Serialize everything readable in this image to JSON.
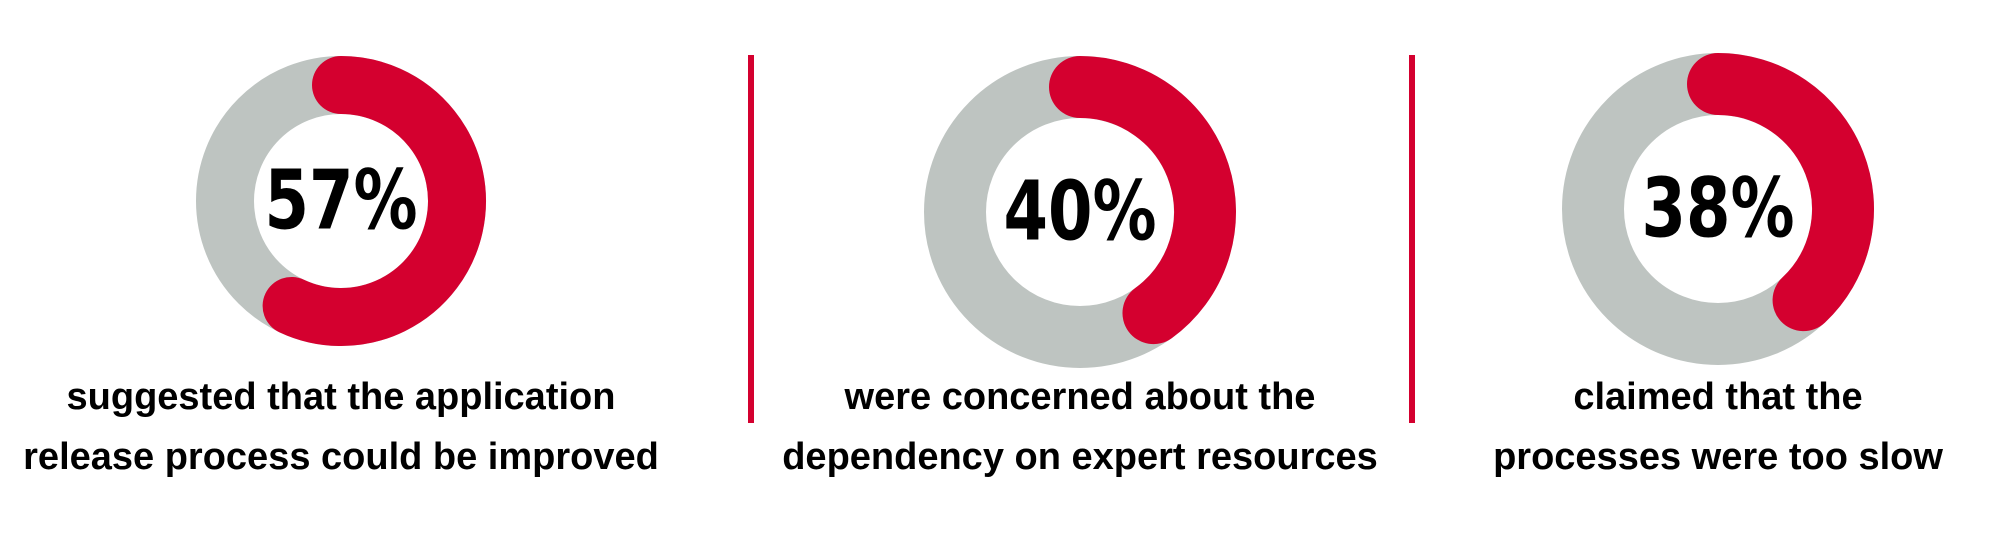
{
  "chart_data": [
    {
      "type": "donut",
      "values": [
        57
      ],
      "value_labels": [
        "57%"
      ],
      "color": "#d4002f",
      "track_color": "#bec4c1",
      "caption": [
        "suggested that the application",
        "release process could be improved"
      ]
    },
    {
      "type": "donut",
      "values": [
        40
      ],
      "value_labels": [
        "40%"
      ],
      "color": "#d4002f",
      "track_color": "#bec4c1",
      "caption": [
        "were concerned about the",
        "dependency on expert resources"
      ]
    },
    {
      "type": "donut",
      "values": [
        38
      ],
      "value_labels": [
        "38%"
      ],
      "color": "#d4002f",
      "track_color": "#bec4c1",
      "caption": [
        "claimed that the",
        "processes were too slow"
      ]
    }
  ]
}
